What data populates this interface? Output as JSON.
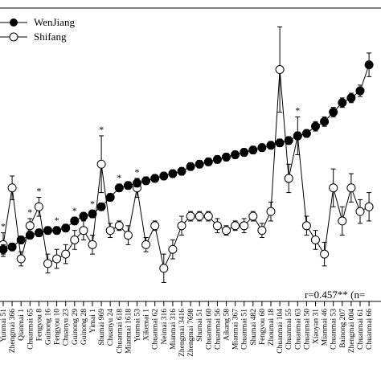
{
  "chart_data": {
    "type": "line",
    "title": "",
    "xlabel": "",
    "ylabel": "",
    "grid": false,
    "legend": "top-left",
    "annotation": "r=0.457** (n=",
    "categories": [
      "Yunmai 51",
      "Zhengmai 366",
      "Qianmai 1",
      "Chuanmai 65",
      "Fengyou 8",
      "Guinong 16",
      "Fengyou 10",
      "Chuanyu 23",
      "Guinong 29",
      "Guinong 28",
      "Yimai 1",
      "Shumai 969",
      "Chuanyu 24",
      "Chuanmai 618",
      "Mianmai 1618",
      "Yunmai 53",
      "Xikemai 1",
      "Chuanmai 62",
      "Neimai 316",
      "Mianmai 316",
      "Zhengmai 3416",
      "Zhengmai 7698",
      "Shumai 51",
      "Chuanmai 60",
      "Chuanmai 56",
      "Aikang 58",
      "Mianmai 367",
      "Chuanmai 51",
      "Shumai 482",
      "Fengyou 60",
      "Zhoumai 18",
      "Chuanmai 104",
      "Chuanmai 55",
      "Chuanmai 63",
      "Chuanmai 50",
      "Xiaoyan 31",
      "Mianmai 46",
      "Chuanmai 53",
      "Bainong 207",
      "Zhengmai 004",
      "Chuanmai 61",
      "Chuanmai 66"
    ],
    "series": [
      {
        "name": "WenJiang",
        "marker": "filled-circle",
        "color": "#000000",
        "values": [
          1.1,
          1.15,
          1.3,
          1.4,
          1.45,
          1.5,
          1.5,
          1.55,
          1.7,
          1.8,
          1.85,
          2.0,
          2.2,
          2.4,
          2.45,
          2.5,
          2.55,
          2.6,
          2.65,
          2.7,
          2.75,
          2.85,
          2.9,
          2.95,
          3.0,
          3.05,
          3.1,
          3.15,
          3.2,
          3.25,
          3.3,
          3.35,
          3.4,
          3.5,
          3.55,
          3.7,
          3.8,
          4.0,
          4.2,
          4.3,
          4.45,
          5.0
        ],
        "errors": [
          0.1,
          0.08,
          0.08,
          0.08,
          0.08,
          0.08,
          0.08,
          0.08,
          0.08,
          0.08,
          0.08,
          0.08,
          0.08,
          0.08,
          0.08,
          0.08,
          0.08,
          0.08,
          0.08,
          0.08,
          0.08,
          0.08,
          0.08,
          0.08,
          0.08,
          0.08,
          0.08,
          0.08,
          0.08,
          0.08,
          0.08,
          0.08,
          0.08,
          0.08,
          0.08,
          0.1,
          0.1,
          0.1,
          0.1,
          0.1,
          0.12,
          0.25
        ]
      },
      {
        "name": "Shifang",
        "marker": "open-circle",
        "color": "#000000",
        "values": [
          1.2,
          2.4,
          0.9,
          1.6,
          2.0,
          0.8,
          0.9,
          1.0,
          1.3,
          1.5,
          1.2,
          2.9,
          1.5,
          1.6,
          1.4,
          2.4,
          1.2,
          1.6,
          0.7,
          1.1,
          1.6,
          1.8,
          1.8,
          1.8,
          1.6,
          1.5,
          1.6,
          1.6,
          1.8,
          1.5,
          1.9,
          4.9,
          2.6,
          3.5,
          1.6,
          1.3,
          1.0,
          2.4,
          1.7,
          2.4,
          1.9,
          2.0
        ],
        "errors": [
          0.25,
          0.25,
          0.15,
          0.15,
          0.2,
          0.2,
          0.2,
          0.2,
          0.2,
          0.2,
          0.2,
          0.6,
          0.15,
          0.1,
          0.2,
          0.2,
          0.15,
          0.1,
          0.3,
          0.2,
          0.2,
          0.1,
          0.1,
          0.1,
          0.15,
          0.1,
          0.1,
          0.15,
          0.1,
          0.15,
          0.2,
          0.9,
          0.3,
          0.4,
          0.2,
          0.2,
          0.25,
          0.4,
          0.3,
          0.3,
          0.25,
          0.3
        ]
      }
    ],
    "significance_marks": {
      "symbol": "*",
      "category_indices": [
        0,
        3,
        4,
        6,
        8,
        10,
        11,
        13,
        15,
        33
      ]
    },
    "ylim": [
      0.0,
      6.2
    ]
  }
}
